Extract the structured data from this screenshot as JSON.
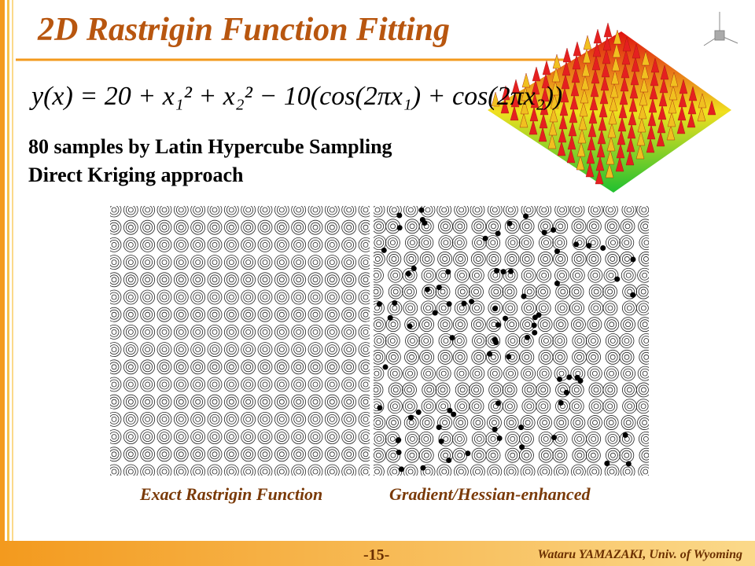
{
  "title": "2D Rastrigin Function Fitting",
  "equation": "y(x) = 20 + x₁² + x₂² − 10(cos(2πx₁) + cos(2πx₂))",
  "bullets": [
    "80 samples by Latin Hypercube Sampling",
    "Direct Kriging approach"
  ],
  "captions": [
    "Exact Rastrigin Function",
    "Gradient/Hessian-enhanced"
  ],
  "footer": {
    "page": "-15-",
    "author": "Wataru YAMAZAKI, Univ. of Wyoming"
  }
}
